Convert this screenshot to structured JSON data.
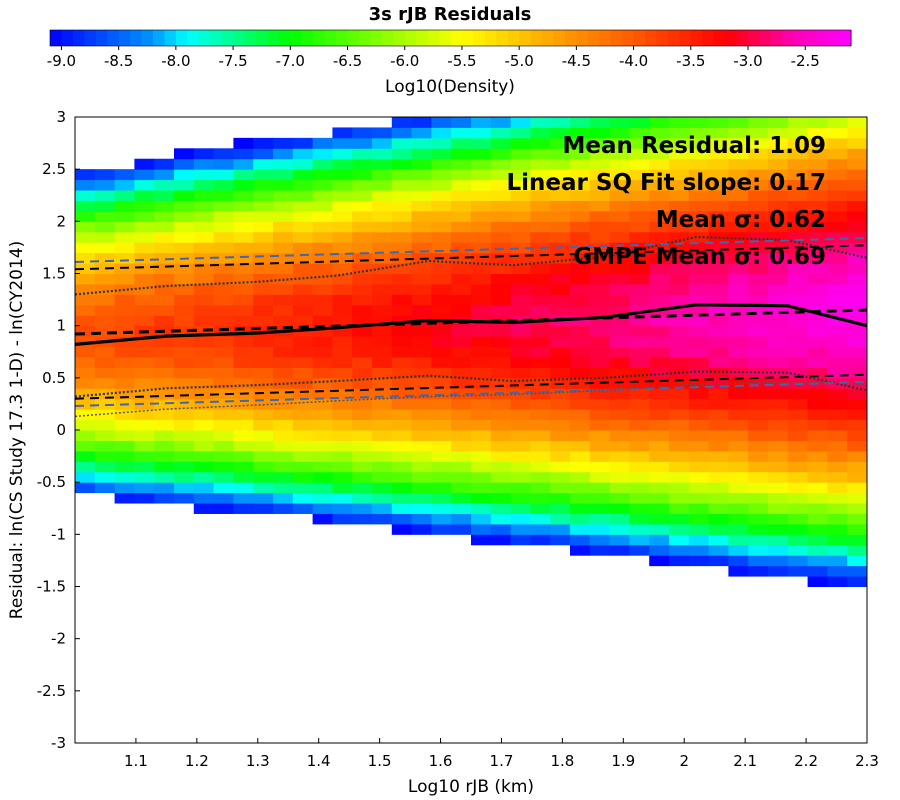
{
  "chart_data": {
    "type": "heatmap",
    "title": "3s rJB Residuals",
    "xlabel": "Log10 rJB (km)",
    "ylabel": "Residual: ln(CS Study 17.3 1-D) - ln(CY2014)",
    "xlim": [
      1.0,
      2.3
    ],
    "ylim": [
      -3,
      3
    ],
    "x_ticks": [
      "1.1",
      "1.2",
      "1.3",
      "1.4",
      "1.5",
      "1.6",
      "1.7",
      "1.8",
      "1.9",
      "2",
      "2.1",
      "2.2",
      "2.3"
    ],
    "y_ticks": [
      "-3",
      "-2.5",
      "-2",
      "-1.5",
      "-1",
      "-0.5",
      "0",
      "0.5",
      "1",
      "1.5",
      "2",
      "2.5",
      "3"
    ],
    "colorbar": {
      "label": "Log10(Density)",
      "range": [
        -9.1,
        -2.1
      ],
      "ticks": [
        "-9.0",
        "-8.5",
        "-8.0",
        "-7.5",
        "-7.0",
        "-6.5",
        "-6.0",
        "-5.5",
        "-5.0",
        "-4.5",
        "-4.0",
        "-3.5",
        "-3.0",
        "-2.5"
      ],
      "position": "top"
    },
    "annotations": [
      "Mean Residual: 1.09",
      "Linear SQ Fit slope: 0.17",
      "Mean σ: 0.62",
      "GMPE Mean σ: 0.69"
    ],
    "annotation_position": "top-right",
    "density_model": {
      "description_free": true,
      "peak_log_density": -2.3,
      "center_intercept": 0.92,
      "center_slope": 0.17,
      "sigma": 0.62
    },
    "series": [
      {
        "style": "solid-thick",
        "color": "#000000",
        "x": [
          1.0,
          1.15,
          1.3,
          1.43,
          1.58,
          1.72,
          1.87,
          2.02,
          2.17,
          2.3
        ],
        "y": [
          0.82,
          0.9,
          0.93,
          0.98,
          1.05,
          1.03,
          1.08,
          1.2,
          1.19,
          1.0
        ]
      },
      {
        "style": "dashed-thick",
        "color": "#000000",
        "x": [
          1.0,
          2.3
        ],
        "y": [
          0.92,
          1.15
        ]
      },
      {
        "style": "dotted-upper",
        "color": "#333333",
        "x": [
          1.0,
          1.15,
          1.3,
          1.43,
          1.58,
          1.72,
          1.87,
          2.02,
          2.17,
          2.3
        ],
        "y": [
          1.3,
          1.38,
          1.42,
          1.48,
          1.62,
          1.58,
          1.66,
          1.85,
          1.82,
          1.65
        ]
      },
      {
        "style": "dotted-lower",
        "color": "#333333",
        "x": [
          1.0,
          1.15,
          1.3,
          1.43,
          1.58,
          1.72,
          1.87,
          2.02,
          2.17,
          2.3
        ],
        "y": [
          0.32,
          0.4,
          0.43,
          0.47,
          0.52,
          0.47,
          0.5,
          0.56,
          0.55,
          0.38
        ]
      },
      {
        "style": "dashed-thin",
        "color": "#000000",
        "x": [
          1.0,
          2.3
        ],
        "y": [
          1.54,
          1.77
        ]
      },
      {
        "style": "dashed-thin",
        "color": "#000000",
        "x": [
          1.0,
          2.3
        ],
        "y": [
          0.3,
          0.53
        ]
      },
      {
        "style": "dashed-blue",
        "color": "#4466aa",
        "x": [
          1.0,
          2.3
        ],
        "y": [
          1.61,
          1.84
        ]
      },
      {
        "style": "dashed-blue",
        "color": "#4466aa",
        "x": [
          1.0,
          2.3
        ],
        "y": [
          0.23,
          0.46
        ]
      },
      {
        "style": "thin-dotted",
        "color": "#555555",
        "x": [
          1.0,
          1.15,
          1.3,
          1.43,
          1.58,
          1.72,
          1.87,
          2.02,
          2.17,
          2.3
        ],
        "y": [
          0.13,
          0.2,
          0.24,
          0.28,
          0.32,
          0.34,
          0.38,
          0.44,
          0.46,
          0.44
        ]
      }
    ]
  }
}
